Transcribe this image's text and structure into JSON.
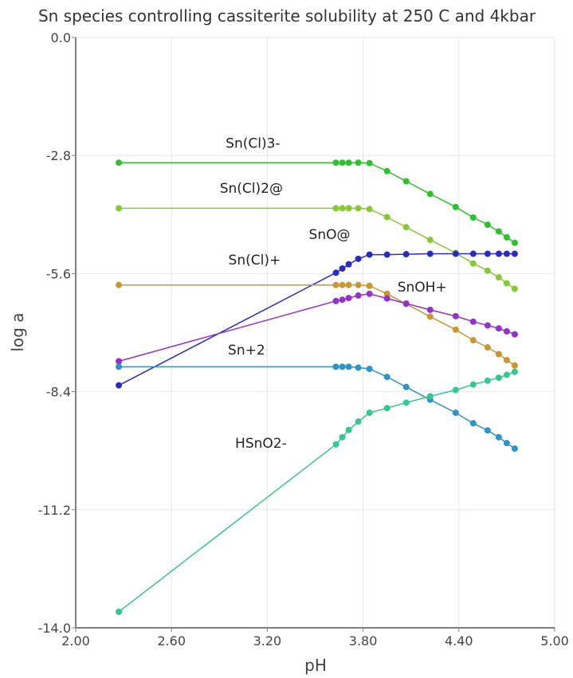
{
  "chart_data": {
    "type": "line",
    "title": "Sn species controlling cassiterite solubility at 250 C and 4kbar",
    "xlabel": "pH",
    "ylabel": "log a",
    "xlim": [
      2.0,
      5.0
    ],
    "ylim": [
      -14.0,
      0.0
    ],
    "xticks": [
      2.0,
      2.6,
      3.2,
      3.8,
      4.4,
      5.0
    ],
    "xtick_labels": [
      "2.00",
      "2.60",
      "3.20",
      "3.80",
      "4.40",
      "5.00"
    ],
    "yticks": [
      0.0,
      -2.8,
      -5.6,
      -8.4,
      -11.2,
      -14.0
    ],
    "ytick_labels": [
      "0.0",
      "-2.8",
      "-5.6",
      "-8.4",
      "-11.2",
      "-14.0"
    ],
    "grid": true,
    "legend": "inline labels",
    "x": [
      2.27,
      3.63,
      3.67,
      3.71,
      3.77,
      3.84,
      3.95,
      4.07,
      4.22,
      4.38,
      4.49,
      4.58,
      4.65,
      4.7,
      4.75
    ],
    "series": [
      {
        "name": "Sn(Cl)3-",
        "color": "#2ec12e",
        "values": [
          -2.97,
          -2.97,
          -2.97,
          -2.97,
          -2.97,
          -2.98,
          -3.17,
          -3.41,
          -3.71,
          -4.02,
          -4.27,
          -4.44,
          -4.6,
          -4.74,
          -4.87
        ]
      },
      {
        "name": "Sn(Cl)2@",
        "color": "#86c935",
        "values": [
          -4.05,
          -4.05,
          -4.05,
          -4.05,
          -4.05,
          -4.07,
          -4.26,
          -4.5,
          -4.8,
          -5.11,
          -5.36,
          -5.53,
          -5.69,
          -5.83,
          -5.96
        ]
      },
      {
        "name": "SnO@",
        "color": "#2b2bc4",
        "values": [
          -8.25,
          -5.58,
          -5.48,
          -5.38,
          -5.25,
          -5.15,
          -5.15,
          -5.14,
          -5.13,
          -5.13,
          -5.13,
          -5.13,
          -5.13,
          -5.13,
          -5.13
        ]
      },
      {
        "name": "Sn(Cl)+",
        "color": "#c89632",
        "values": [
          -5.87,
          -5.87,
          -5.87,
          -5.87,
          -5.87,
          -5.89,
          -6.08,
          -6.32,
          -6.62,
          -6.93,
          -7.18,
          -7.35,
          -7.51,
          -7.65,
          -7.78
        ]
      },
      {
        "name": "SnOH+",
        "color": "#9332c8",
        "values": [
          -7.68,
          -6.25,
          -6.22,
          -6.18,
          -6.12,
          -6.08,
          -6.19,
          -6.31,
          -6.46,
          -6.61,
          -6.74,
          -6.83,
          -6.9,
          -6.97,
          -7.04
        ]
      },
      {
        "name": "Sn+2",
        "color": "#2c94c8",
        "values": [
          -7.81,
          -7.81,
          -7.81,
          -7.81,
          -7.83,
          -7.86,
          -8.05,
          -8.29,
          -8.59,
          -8.9,
          -9.15,
          -9.32,
          -9.48,
          -9.62,
          -9.75
        ]
      },
      {
        "name": "HSnO2-",
        "color": "#34c890",
        "values": [
          -13.62,
          -9.65,
          -9.48,
          -9.31,
          -9.11,
          -8.9,
          -8.79,
          -8.66,
          -8.51,
          -8.36,
          -8.23,
          -8.14,
          -8.07,
          -8.0,
          -7.93
        ]
      }
    ],
    "annotations": [
      {
        "text": "Sn(Cl)3-",
        "x": 3.11,
        "y": -2.62
      },
      {
        "text": "Sn(Cl)2@",
        "x": 3.1,
        "y": -3.68
      },
      {
        "text": "SnO@",
        "x": 3.59,
        "y": -4.78
      },
      {
        "text": "Sn(Cl)+",
        "x": 3.12,
        "y": -5.38
      },
      {
        "text": "SnOH+",
        "x": 4.17,
        "y": -6.03
      },
      {
        "text": "Sn+2",
        "x": 3.07,
        "y": -7.52
      },
      {
        "text": "HSnO2-",
        "x": 3.16,
        "y": -9.73
      }
    ]
  }
}
